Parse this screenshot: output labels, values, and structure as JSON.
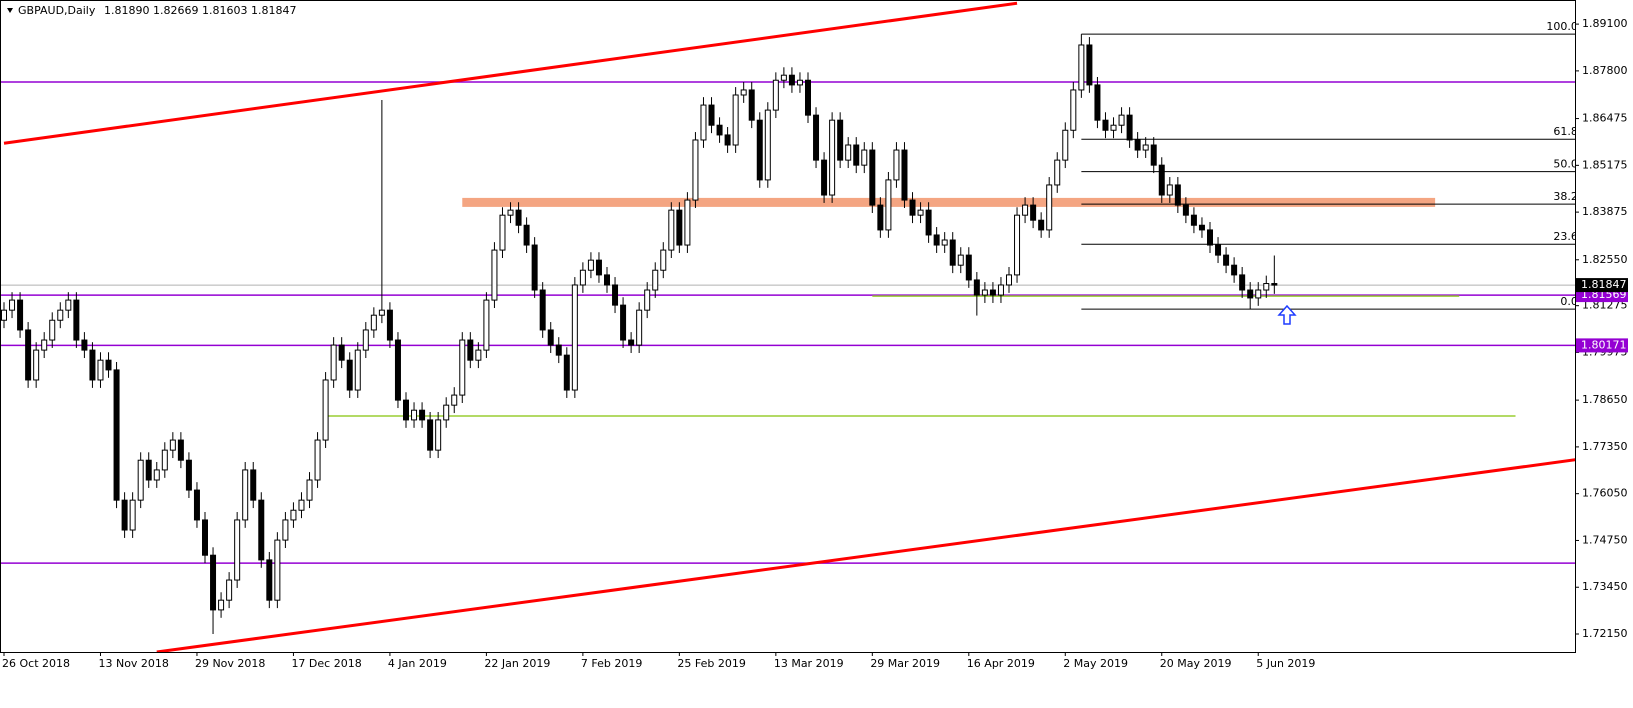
{
  "header": {
    "symbol": "GBPAUD,Daily",
    "quote": "1.81890 1.82669 1.81603 1.81847"
  },
  "chart_data": {
    "type": "candlestick",
    "ylim": [
      1.7165,
      1.8977
    ],
    "yticks": [
      {
        "value": 1.891,
        "label": "1.89100"
      },
      {
        "value": 1.878,
        "label": "1.87800"
      },
      1.86475,
      1.85175,
      1.83875,
      {
        "value": 1.8255,
        "label": "1.82550"
      },
      1.81275,
      1.79975,
      {
        "value": 1.7865,
        "label": "1.78650"
      },
      {
        "value": 1.7735,
        "label": "1.77350"
      },
      {
        "value": 1.7605,
        "label": "1.76050"
      },
      {
        "value": 1.7475,
        "label": "1.74750"
      },
      {
        "value": 1.7345,
        "label": "1.73450"
      },
      {
        "value": 1.7215,
        "label": "1.72150"
      }
    ],
    "categories": [
      "26 Oct 2018",
      null,
      null,
      null,
      null,
      null,
      null,
      null,
      null,
      null,
      null,
      null,
      "13 Nov 2018",
      null,
      null,
      null,
      null,
      null,
      null,
      null,
      null,
      null,
      null,
      null,
      "29 Nov 2018",
      null,
      null,
      null,
      null,
      null,
      null,
      null,
      null,
      null,
      null,
      null,
      "17 Dec 2018",
      null,
      null,
      null,
      null,
      null,
      null,
      null,
      null,
      null,
      null,
      null,
      "4 Jan 2019",
      null,
      null,
      null,
      null,
      null,
      null,
      null,
      null,
      null,
      null,
      null,
      "22 Jan 2019",
      null,
      null,
      null,
      null,
      null,
      null,
      null,
      null,
      null,
      null,
      null,
      "7 Feb 2019",
      null,
      null,
      null,
      null,
      null,
      null,
      null,
      null,
      null,
      null,
      null,
      "25 Feb 2019",
      null,
      null,
      null,
      null,
      null,
      null,
      null,
      null,
      null,
      null,
      null,
      "13 Mar 2019",
      null,
      null,
      null,
      null,
      null,
      null,
      null,
      null,
      null,
      null,
      null,
      "29 Mar 2019",
      null,
      null,
      null,
      null,
      null,
      null,
      null,
      null,
      null,
      null,
      null,
      "16 Apr 2019",
      null,
      null,
      null,
      null,
      null,
      null,
      null,
      null,
      null,
      null,
      null,
      "2 May 2019",
      null,
      null,
      null,
      null,
      null,
      null,
      null,
      null,
      null,
      null,
      null,
      "20 May 2019",
      null,
      null,
      null,
      null,
      null,
      null,
      null,
      null,
      null,
      null,
      null,
      "5 Jun 2019",
      null,
      null
    ],
    "ohlc": [
      [
        1.8087,
        1.8137,
        1.8065,
        1.8115
      ],
      [
        1.8115,
        1.8165,
        1.8093,
        1.8143
      ],
      [
        1.8143,
        1.8165,
        1.8038,
        1.806
      ],
      [
        1.806,
        1.8082,
        1.7899,
        1.7921
      ],
      [
        1.7921,
        1.8026,
        1.7899,
        1.8004
      ],
      [
        1.8004,
        1.8054,
        1.7982,
        1.8032
      ],
      [
        1.8032,
        1.8109,
        1.801,
        1.8087
      ],
      [
        1.8087,
        1.8137,
        1.8065,
        1.8115
      ],
      [
        1.8115,
        1.8165,
        1.8093,
        1.8143
      ],
      [
        1.8143,
        1.8165,
        1.801,
        1.8032
      ],
      [
        1.8032,
        1.8054,
        1.7982,
        1.8004
      ],
      [
        1.8004,
        1.8026,
        1.7899,
        1.7921
      ],
      [
        1.7921,
        1.7998,
        1.7899,
        1.7976
      ],
      [
        1.7976,
        1.7998,
        1.7927,
        1.7949
      ],
      [
        1.7949,
        1.7971,
        1.7565,
        1.7587
      ],
      [
        1.7587,
        1.7609,
        1.7482,
        1.7504
      ],
      [
        1.7504,
        1.7609,
        1.7482,
        1.7587
      ],
      [
        1.7587,
        1.772,
        1.7565,
        1.7698
      ],
      [
        1.7698,
        1.772,
        1.7621,
        1.7643
      ],
      [
        1.7643,
        1.7693,
        1.7621,
        1.7671
      ],
      [
        1.7671,
        1.7748,
        1.7649,
        1.7726
      ],
      [
        1.7726,
        1.7776,
        1.7704,
        1.7754
      ],
      [
        1.7754,
        1.7776,
        1.7676,
        1.7698
      ],
      [
        1.7698,
        1.772,
        1.7593,
        1.7615
      ],
      [
        1.7615,
        1.7637,
        1.751,
        1.7532
      ],
      [
        1.7532,
        1.7554,
        1.7412,
        1.7434
      ],
      [
        1.7434,
        1.7456,
        1.7215,
        1.7282
      ],
      [
        1.7282,
        1.7331,
        1.726,
        1.7309
      ],
      [
        1.7309,
        1.7387,
        1.7287,
        1.7365
      ],
      [
        1.7365,
        1.7554,
        1.7343,
        1.7532
      ],
      [
        1.7532,
        1.7693,
        1.751,
        1.7671
      ],
      [
        1.7671,
        1.7693,
        1.7565,
        1.7587
      ],
      [
        1.7587,
        1.7609,
        1.7399,
        1.7421
      ],
      [
        1.7421,
        1.7443,
        1.7287,
        1.7309
      ],
      [
        1.7309,
        1.7498,
        1.7287,
        1.7476
      ],
      [
        1.7476,
        1.7554,
        1.7454,
        1.7532
      ],
      [
        1.7532,
        1.7581,
        1.751,
        1.7559
      ],
      [
        1.7559,
        1.7609,
        1.7537,
        1.7587
      ],
      [
        1.7587,
        1.7665,
        1.7565,
        1.7643
      ],
      [
        1.7643,
        1.7776,
        1.7621,
        1.7754
      ],
      [
        1.7754,
        1.7943,
        1.7732,
        1.7921
      ],
      [
        1.7921,
        1.804,
        1.7899,
        1.8018
      ],
      [
        1.8018,
        1.804,
        1.7954,
        1.7976
      ],
      [
        1.7976,
        1.7998,
        1.7871,
        1.7893
      ],
      [
        1.7893,
        1.8026,
        1.7871,
        1.8004
      ],
      [
        1.8004,
        1.8082,
        1.7982,
        1.806
      ],
      [
        1.806,
        1.8123,
        1.8038,
        1.8101
      ],
      [
        1.8101,
        1.8699,
        1.8079,
        1.8115
      ],
      [
        1.8115,
        1.8137,
        1.801,
        1.8032
      ],
      [
        1.8032,
        1.8054,
        1.7843,
        1.7865
      ],
      [
        1.7865,
        1.7887,
        1.7788,
        1.781
      ],
      [
        1.781,
        1.7859,
        1.7788,
        1.7837
      ],
      [
        1.7837,
        1.7859,
        1.7788,
        1.781
      ],
      [
        1.781,
        1.7832,
        1.7704,
        1.7726
      ],
      [
        1.7726,
        1.7832,
        1.7704,
        1.781
      ],
      [
        1.781,
        1.7873,
        1.7788,
        1.7851
      ],
      [
        1.7851,
        1.7901,
        1.7829,
        1.7879
      ],
      [
        1.7879,
        1.8054,
        1.7857,
        1.8032
      ],
      [
        1.8032,
        1.8054,
        1.7954,
        1.7976
      ],
      [
        1.7976,
        1.8026,
        1.7954,
        1.8004
      ],
      [
        1.8004,
        1.8165,
        1.7982,
        1.8143
      ],
      [
        1.8143,
        1.8304,
        1.8121,
        1.8282
      ],
      [
        1.8282,
        1.8401,
        1.826,
        1.8379
      ],
      [
        1.8379,
        1.8415,
        1.8357,
        1.8393
      ],
      [
        1.8393,
        1.8415,
        1.8329,
        1.8351
      ],
      [
        1.8351,
        1.8373,
        1.8274,
        1.8296
      ],
      [
        1.8296,
        1.8318,
        1.8149,
        1.8171
      ],
      [
        1.8171,
        1.8193,
        1.8038,
        1.806
      ],
      [
        1.806,
        1.8082,
        1.7996,
        1.8018
      ],
      [
        1.8018,
        1.804,
        1.7968,
        1.799
      ],
      [
        1.799,
        1.8012,
        1.7871,
        1.7893
      ],
      [
        1.7893,
        1.8207,
        1.7871,
        1.8185
      ],
      [
        1.8185,
        1.8248,
        1.8163,
        1.8226
      ],
      [
        1.8226,
        1.8276,
        1.8204,
        1.8254
      ],
      [
        1.8254,
        1.8276,
        1.8191,
        1.8213
      ],
      [
        1.8213,
        1.8235,
        1.8163,
        1.8185
      ],
      [
        1.8185,
        1.8207,
        1.8107,
        1.8129
      ],
      [
        1.8129,
        1.8151,
        1.801,
        1.8032
      ],
      [
        1.8032,
        1.8054,
        1.7996,
        1.8018
      ],
      [
        1.8018,
        1.8137,
        1.7996,
        1.8115
      ],
      [
        1.8115,
        1.8193,
        1.8093,
        1.8171
      ],
      [
        1.8171,
        1.8248,
        1.8149,
        1.8226
      ],
      [
        1.8226,
        1.8304,
        1.8204,
        1.8282
      ],
      [
        1.8282,
        1.8415,
        1.826,
        1.8393
      ],
      [
        1.8393,
        1.8415,
        1.8274,
        1.8296
      ],
      [
        1.8296,
        1.8443,
        1.8274,
        1.8421
      ],
      [
        1.8421,
        1.861,
        1.8399,
        1.8588
      ],
      [
        1.8588,
        1.8707,
        1.8566,
        1.8685
      ],
      [
        1.8685,
        1.8707,
        1.8607,
        1.8629
      ],
      [
        1.8629,
        1.8651,
        1.858,
        1.8602
      ],
      [
        1.8602,
        1.8624,
        1.8552,
        1.8574
      ],
      [
        1.8574,
        1.8735,
        1.8552,
        1.8713
      ],
      [
        1.8713,
        1.8749,
        1.8691,
        1.8727
      ],
      [
        1.8727,
        1.8749,
        1.8621,
        1.8643
      ],
      [
        1.8643,
        1.8665,
        1.8455,
        1.8477
      ],
      [
        1.8477,
        1.8693,
        1.8455,
        1.8671
      ],
      [
        1.8671,
        1.8776,
        1.8649,
        1.8754
      ],
      [
        1.8754,
        1.879,
        1.8732,
        1.8768
      ],
      [
        1.8768,
        1.879,
        1.8719,
        1.8741
      ],
      [
        1.8741,
        1.8776,
        1.8719,
        1.8754
      ],
      [
        1.8754,
        1.8776,
        1.8635,
        1.8657
      ],
      [
        1.8657,
        1.8679,
        1.851,
        1.8532
      ],
      [
        1.8532,
        1.8554,
        1.8413,
        1.8435
      ],
      [
        1.8435,
        1.8665,
        1.8413,
        1.8643
      ],
      [
        1.8643,
        1.8665,
        1.851,
        1.8532
      ],
      [
        1.8532,
        1.8596,
        1.851,
        1.8574
      ],
      [
        1.8574,
        1.8596,
        1.8496,
        1.8518
      ],
      [
        1.8518,
        1.8582,
        1.8496,
        1.856
      ],
      [
        1.856,
        1.8582,
        1.8385,
        1.8407
      ],
      [
        1.8407,
        1.8429,
        1.8316,
        1.8338
      ],
      [
        1.8338,
        1.8499,
        1.8316,
        1.8477
      ],
      [
        1.8477,
        1.8582,
        1.8455,
        1.856
      ],
      [
        1.856,
        1.8582,
        1.8399,
        1.8421
      ],
      [
        1.8421,
        1.8443,
        1.8357,
        1.8379
      ],
      [
        1.8379,
        1.8415,
        1.8357,
        1.8393
      ],
      [
        1.8393,
        1.8415,
        1.8302,
        1.8324
      ],
      [
        1.8324,
        1.8346,
        1.8274,
        1.8296
      ],
      [
        1.8296,
        1.8332,
        1.8274,
        1.831
      ],
      [
        1.831,
        1.8332,
        1.8218,
        1.824
      ],
      [
        1.824,
        1.829,
        1.8218,
        1.8268
      ],
      [
        1.8268,
        1.829,
        1.8177,
        1.8199
      ],
      [
        1.8199,
        1.8221,
        1.81,
        1.8157
      ],
      [
        1.8157,
        1.8193,
        1.8135,
        1.8171
      ],
      [
        1.8171,
        1.8193,
        1.8135,
        1.8157
      ],
      [
        1.8157,
        1.8207,
        1.8135,
        1.8185
      ],
      [
        1.8185,
        1.8235,
        1.8163,
        1.8213
      ],
      [
        1.8213,
        1.8401,
        1.8191,
        1.8379
      ],
      [
        1.8379,
        1.8429,
        1.8357,
        1.8407
      ],
      [
        1.8407,
        1.8429,
        1.8343,
        1.8365
      ],
      [
        1.8365,
        1.8387,
        1.8316,
        1.8338
      ],
      [
        1.8338,
        1.8485,
        1.8316,
        1.8463
      ],
      [
        1.8463,
        1.8554,
        1.8441,
        1.8532
      ],
      [
        1.8532,
        1.8637,
        1.851,
        1.8615
      ],
      [
        1.8615,
        1.8749,
        1.8593,
        1.8727
      ],
      [
        1.8727,
        1.8882,
        1.8705,
        1.8852
      ],
      [
        1.8852,
        1.8874,
        1.8719,
        1.8741
      ],
      [
        1.8741,
        1.8763,
        1.8621,
        1.8643
      ],
      [
        1.8643,
        1.8665,
        1.8593,
        1.8615
      ],
      [
        1.8615,
        1.8651,
        1.8593,
        1.8629
      ],
      [
        1.8629,
        1.8679,
        1.8607,
        1.8657
      ],
      [
        1.8657,
        1.8679,
        1.8566,
        1.8588
      ],
      [
        1.8588,
        1.861,
        1.8538,
        1.856
      ],
      [
        1.856,
        1.8596,
        1.8538,
        1.8574
      ],
      [
        1.8574,
        1.8596,
        1.8496,
        1.8518
      ],
      [
        1.8518,
        1.854,
        1.8413,
        1.8435
      ],
      [
        1.8435,
        1.8485,
        1.8413,
        1.8463
      ],
      [
        1.8463,
        1.8485,
        1.8385,
        1.8407
      ],
      [
        1.8407,
        1.8429,
        1.8357,
        1.8379
      ],
      [
        1.8379,
        1.8401,
        1.8329,
        1.8351
      ],
      [
        1.8351,
        1.8373,
        1.8316,
        1.8338
      ],
      [
        1.8338,
        1.836,
        1.8274,
        1.8296
      ],
      [
        1.8296,
        1.8318,
        1.8246,
        1.8268
      ],
      [
        1.8268,
        1.829,
        1.8218,
        1.824
      ],
      [
        1.824,
        1.8262,
        1.8191,
        1.8213
      ],
      [
        1.8213,
        1.8235,
        1.8149,
        1.8171
      ],
      [
        1.8171,
        1.8193,
        1.8118,
        1.8149
      ],
      [
        1.8149,
        1.8193,
        1.8127,
        1.8171
      ],
      [
        1.8171,
        1.8211,
        1.8149,
        1.8189
      ],
      [
        1.8189,
        1.82669,
        1.81603,
        1.81847
      ]
    ],
    "bull_color": "#ffffff",
    "bear_color": "#000000",
    "hlines": [
      {
        "value": 1.8749,
        "color": "#9400d3",
        "labeled": false
      },
      {
        "value": 1.81569,
        "color": "#9400d3",
        "labeled": true
      },
      {
        "value": 1.80171,
        "color": "#9400d3",
        "labeled": true
      },
      {
        "value": 1.7412,
        "color": "#9400d3",
        "labeled": false
      }
    ],
    "trendlines": [
      {
        "x": [
          0,
          126
        ],
        "y": [
          1.8579,
          1.8968
        ],
        "color": "#ff0000"
      },
      {
        "x": [
          19,
          196
        ],
        "y": [
          1.7165,
          1.7701
        ],
        "color": "#ff0000"
      }
    ],
    "segments": [
      {
        "x": [
          40,
          188
        ],
        "y": [
          1.7821,
          1.7821
        ],
        "color": "#9acd32"
      },
      {
        "x": [
          108,
          181
        ],
        "y": [
          1.8154,
          1.8154
        ],
        "color": "#9acd32"
      }
    ],
    "zones": [
      {
        "x": [
          57,
          178
        ],
        "y": [
          1.8402,
          1.8427
        ],
        "color": "#f4a582"
      }
    ],
    "fibonacci": {
      "x": [
        134,
        196
      ],
      "high": 1.8882,
      "low": 1.8118,
      "levels": [
        {
          "value": 100,
          "label": "100.0"
        },
        61.8,
        {
          "value": 50,
          "label": "50.0"
        },
        38.2,
        23.6,
        {
          "value": 0,
          "label": "0.0"
        }
      ]
    }
  }
}
